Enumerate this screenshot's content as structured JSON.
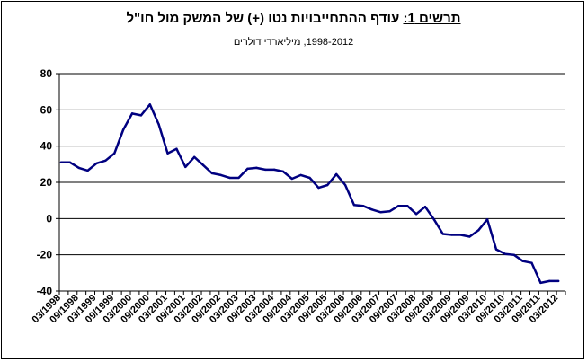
{
  "chart_data": {
    "type": "line",
    "title_lead": "תרשים 1:",
    "title_rest": "עודף ההתחייבויות נטו (+) של המשק מול חו\"ל",
    "subtitle": "1998-2012, מיליארדי דולרים",
    "xlabel": "",
    "ylabel": "",
    "ylim": [
      -40,
      80
    ],
    "yticks": [
      80,
      60,
      40,
      20,
      0,
      -20,
      -40
    ],
    "grid": true,
    "legend": "none",
    "series_color": "#000080",
    "x_tick_labels": [
      "03/1998",
      "09/1998",
      "03/1999",
      "09/1999",
      "03/2000",
      "09/2000",
      "03/2001",
      "09/2001",
      "03/2002",
      "09/2002",
      "03/2003",
      "09/2003",
      "03/2004",
      "09/2004",
      "03/2005",
      "09/2005",
      "03/2006",
      "09/2006",
      "03/2007",
      "09/2007",
      "03/2008",
      "09/2008",
      "03/2009",
      "09/2009",
      "03/2010",
      "09/2010",
      "03/2011",
      "09/2011",
      "03/2012"
    ],
    "x": [
      "03/1998",
      "06/1998",
      "09/1998",
      "12/1998",
      "03/1999",
      "06/1999",
      "09/1999",
      "12/1999",
      "03/2000",
      "06/2000",
      "09/2000",
      "12/2000",
      "03/2001",
      "06/2001",
      "09/2001",
      "12/2001",
      "03/2002",
      "06/2002",
      "09/2002",
      "12/2002",
      "03/2003",
      "06/2003",
      "09/2003",
      "12/2003",
      "03/2004",
      "06/2004",
      "09/2004",
      "12/2004",
      "03/2005",
      "06/2005",
      "09/2005",
      "12/2005",
      "03/2006",
      "06/2006",
      "09/2006",
      "12/2006",
      "03/2007",
      "06/2007",
      "09/2007",
      "12/2007",
      "03/2008",
      "06/2008",
      "09/2008",
      "12/2008",
      "03/2009",
      "06/2009",
      "09/2009",
      "12/2009",
      "03/2010",
      "06/2010",
      "09/2010",
      "12/2010",
      "03/2011",
      "06/2011",
      "09/2011",
      "12/2011",
      "03/2012"
    ],
    "series": [
      {
        "values": [
          31,
          31,
          28,
          26.5,
          30.5,
          32,
          36,
          49,
          58,
          57,
          63,
          52,
          36,
          38.5,
          28.5,
          34,
          29.5,
          25,
          24,
          22.5,
          22.5,
          27.5,
          28,
          27,
          27,
          26,
          22,
          24,
          22.5,
          17,
          18.5,
          24.5,
          18.5,
          7.5,
          7,
          5,
          3.5,
          4,
          7,
          7,
          2.5,
          6.5,
          -0.5,
          -8.5,
          -9,
          -9,
          -10,
          -6.5,
          -0.5,
          -17,
          -19.5,
          -20,
          -23.5,
          -24.5,
          -35.5,
          -34.5,
          -34.5
        ]
      }
    ]
  }
}
